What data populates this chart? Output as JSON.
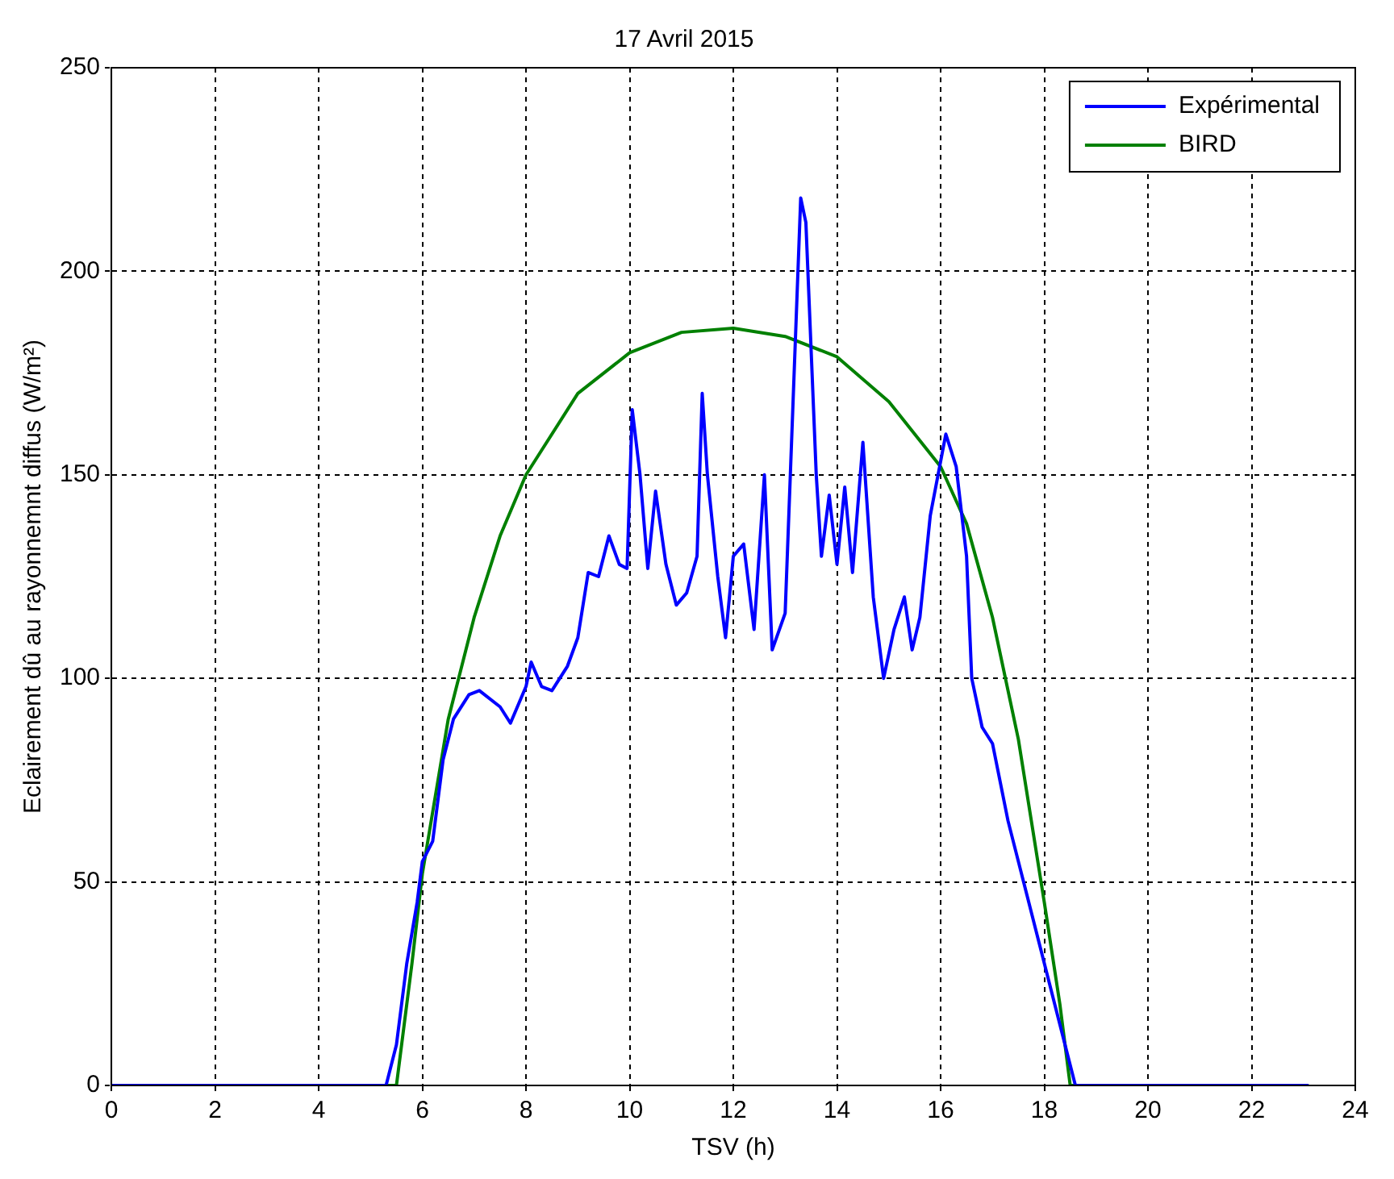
{
  "chart_data": {
    "type": "line",
    "title": "17 Avril 2015",
    "xlabel": "TSV (h)",
    "ylabel": "Eclairement dû au rayonnemnt diffus (W/m²)",
    "xlim": [
      0,
      24
    ],
    "xticks": [
      0,
      2,
      4,
      6,
      8,
      10,
      12,
      14,
      16,
      18,
      20,
      22,
      24
    ],
    "ylim": [
      0,
      250
    ],
    "yticks": [
      0,
      50,
      100,
      150,
      200,
      250
    ],
    "grid": true,
    "legend": "top right",
    "marker": "none",
    "line_style": "solid",
    "series": [
      {
        "name": "Expérimental",
        "color": "#0000ff",
        "x": [
          0,
          5.3,
          5.5,
          5.7,
          5.9,
          6.0,
          6.2,
          6.4,
          6.6,
          6.9,
          7.1,
          7.5,
          7.7,
          8.0,
          8.1,
          8.3,
          8.5,
          8.8,
          9.0,
          9.2,
          9.4,
          9.6,
          9.8,
          9.95,
          10.05,
          10.2,
          10.35,
          10.5,
          10.7,
          10.9,
          11.1,
          11.3,
          11.4,
          11.5,
          11.7,
          11.85,
          12.0,
          12.2,
          12.4,
          12.6,
          12.75,
          13.0,
          13.1,
          13.3,
          13.4,
          13.6,
          13.7,
          13.85,
          14.0,
          14.15,
          14.3,
          14.5,
          14.7,
          14.9,
          15.1,
          15.3,
          15.45,
          15.6,
          15.8,
          16.1,
          16.3,
          16.5,
          16.6,
          16.8,
          17.0,
          17.3,
          17.6,
          17.9,
          18.1,
          18.4,
          18.6,
          23.1
        ],
        "values": [
          0,
          0,
          10,
          30,
          45,
          55,
          60,
          80,
          90,
          96,
          97,
          93,
          89,
          98,
          104,
          98,
          97,
          103,
          110,
          126,
          125,
          135,
          128,
          127,
          166,
          150,
          127,
          146,
          128,
          118,
          121,
          130,
          170,
          150,
          125,
          110,
          130,
          133,
          112,
          150,
          107,
          116,
          150,
          218,
          212,
          150,
          130,
          145,
          128,
          147,
          126,
          158,
          120,
          100,
          112,
          120,
          107,
          115,
          140,
          160,
          152,
          130,
          100,
          88,
          84,
          65,
          50,
          35,
          25,
          10,
          0,
          0
        ]
      },
      {
        "name": "BIRD",
        "color": "#008000",
        "x": [
          0,
          5.5,
          5.8,
          6,
          6.5,
          7,
          7.5,
          8,
          9,
          10,
          11,
          12,
          13,
          14,
          15,
          16,
          16.5,
          17,
          17.5,
          18,
          18.3,
          18.5,
          23.1
        ],
        "values": [
          0,
          0,
          30,
          52,
          90,
          115,
          135,
          150,
          170,
          180,
          185,
          186,
          184,
          179,
          168,
          152,
          138,
          115,
          85,
          45,
          20,
          0,
          0
        ]
      }
    ]
  }
}
